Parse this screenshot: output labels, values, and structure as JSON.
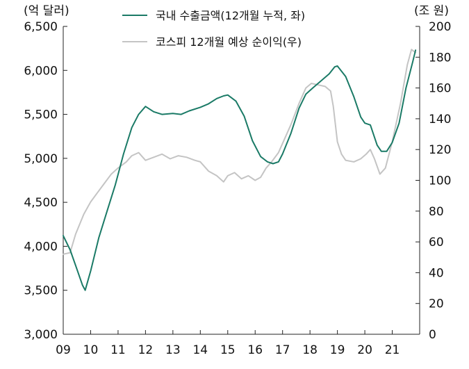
{
  "chart_data": {
    "type": "line",
    "left_axis_unit": "(억 달러)",
    "right_axis_unit": "(조 원)",
    "x_tick_labels": [
      "09",
      "10",
      "11",
      "12",
      "13",
      "14",
      "15",
      "16",
      "17",
      "18",
      "19",
      "20",
      "21"
    ],
    "x_range": [
      2009.0,
      2022.0
    ],
    "y_left": {
      "range": [
        3000,
        6500
      ],
      "ticks": [
        "3,000",
        "3,500",
        "4,000",
        "4,500",
        "5,000",
        "5,500",
        "6,000",
        "6,500"
      ]
    },
    "y_right": {
      "range": [
        0,
        200
      ],
      "ticks": [
        "0",
        "20",
        "40",
        "60",
        "80",
        "100",
        "120",
        "140",
        "160",
        "180",
        "200"
      ]
    },
    "grid": false,
    "legend_position": "top",
    "series": [
      {
        "name": "국내 수출금액(12개월 누적, 좌)",
        "axis": "left",
        "color": "#1a7a66",
        "x": [
          2009.0,
          2009.25,
          2009.5,
          2009.7,
          2009.8,
          2010.0,
          2010.3,
          2010.6,
          2010.9,
          2011.2,
          2011.5,
          2011.75,
          2012.0,
          2012.3,
          2012.6,
          2013.0,
          2013.3,
          2013.6,
          2014.0,
          2014.3,
          2014.6,
          2014.85,
          2015.0,
          2015.3,
          2015.6,
          2015.9,
          2016.2,
          2016.45,
          2016.65,
          2016.85,
          2017.0,
          2017.3,
          2017.6,
          2017.85,
          2018.1,
          2018.4,
          2018.7,
          2018.9,
          2019.0,
          2019.3,
          2019.6,
          2019.85,
          2020.0,
          2020.2,
          2020.45,
          2020.6,
          2020.8,
          2021.0,
          2021.25,
          2021.5,
          2021.75,
          2021.85
        ],
        "values": [
          4120,
          3960,
          3740,
          3560,
          3500,
          3720,
          4100,
          4400,
          4700,
          5050,
          5350,
          5500,
          5590,
          5530,
          5500,
          5510,
          5500,
          5540,
          5580,
          5620,
          5680,
          5710,
          5720,
          5650,
          5480,
          5200,
          5020,
          4960,
          4940,
          4960,
          5050,
          5280,
          5570,
          5730,
          5800,
          5880,
          5960,
          6040,
          6050,
          5930,
          5700,
          5470,
          5400,
          5380,
          5150,
          5080,
          5080,
          5180,
          5400,
          5800,
          6100,
          6230
        ]
      },
      {
        "name": "코스피 12개월 예상 순이익(우)",
        "axis": "right",
        "color": "#c4c4c4",
        "x": [
          2009.0,
          2009.25,
          2009.45,
          2009.75,
          2010.0,
          2010.25,
          2010.5,
          2010.75,
          2011.0,
          2011.3,
          2011.5,
          2011.75,
          2012.0,
          2012.3,
          2012.6,
          2012.9,
          2013.2,
          2013.5,
          2013.8,
          2014.0,
          2014.3,
          2014.6,
          2014.85,
          2015.0,
          2015.25,
          2015.5,
          2015.75,
          2016.0,
          2016.2,
          2016.4,
          2016.6,
          2016.85,
          2017.0,
          2017.3,
          2017.6,
          2017.85,
          2018.05,
          2018.3,
          2018.55,
          2018.75,
          2018.85,
          2019.0,
          2019.15,
          2019.3,
          2019.6,
          2019.85,
          2020.05,
          2020.2,
          2020.35,
          2020.55,
          2020.75,
          2021.0,
          2021.3,
          2021.55,
          2021.7,
          2021.85
        ],
        "values": [
          52,
          53,
          65,
          78,
          86,
          92,
          98,
          104,
          108,
          112,
          116,
          118,
          113,
          115,
          117,
          114,
          116,
          115,
          113,
          112,
          106,
          103,
          99,
          103,
          105,
          101,
          103,
          100,
          102,
          108,
          112,
          118,
          124,
          136,
          150,
          160,
          163,
          162,
          161,
          158,
          148,
          125,
          117,
          113,
          112,
          114,
          117,
          120,
          114,
          104,
          108,
          125,
          150,
          175,
          185,
          183
        ]
      }
    ]
  }
}
